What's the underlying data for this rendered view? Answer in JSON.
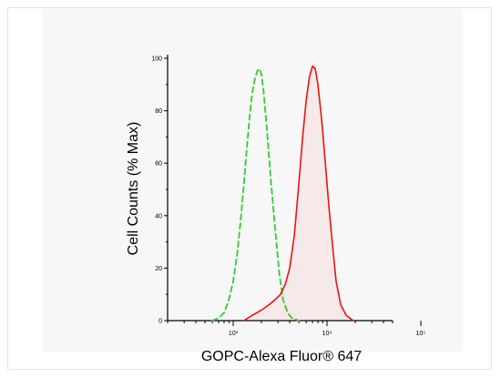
{
  "chart_data": {
    "type": "line",
    "xlabel": "GOPC-Alexa Fluor® 647",
    "ylabel": "Cell Counts (% Max)",
    "x_scale": "log",
    "xlim": [
      200,
      50000
    ],
    "ylim": [
      0,
      100
    ],
    "x_ticks": [
      {
        "value": 1000,
        "label": "10³"
      },
      {
        "value": 10000,
        "label": "10⁴"
      },
      {
        "value": 100000,
        "label": "10⁵"
      }
    ],
    "y_ticks": [
      {
        "value": 0,
        "label": "0"
      },
      {
        "value": 20,
        "label": "20"
      },
      {
        "value": 40,
        "label": "40"
      },
      {
        "value": 60,
        "label": "60"
      },
      {
        "value": 80,
        "label": "80"
      },
      {
        "value": 100,
        "label": "100"
      }
    ],
    "grid": false,
    "legend": "none",
    "series": [
      {
        "color": "#33cc33",
        "style": "dashed",
        "points": [
          [
            600,
            0
          ],
          [
            700,
            1
          ],
          [
            800,
            3
          ],
          [
            900,
            8
          ],
          [
            1000,
            15
          ],
          [
            1100,
            25
          ],
          [
            1200,
            38
          ],
          [
            1300,
            52
          ],
          [
            1400,
            66
          ],
          [
            1500,
            78
          ],
          [
            1600,
            87
          ],
          [
            1700,
            92
          ],
          [
            1800,
            95
          ],
          [
            1900,
            96
          ],
          [
            2000,
            94
          ],
          [
            2100,
            88
          ],
          [
            2300,
            72
          ],
          [
            2500,
            55
          ],
          [
            2800,
            35
          ],
          [
            3100,
            18
          ],
          [
            3400,
            8
          ],
          [
            3800,
            3
          ],
          [
            4200,
            1
          ],
          [
            5000,
            0
          ]
        ]
      },
      {
        "color": "#ee1111",
        "style": "solid",
        "points": [
          [
            1300,
            0
          ],
          [
            1600,
            2
          ],
          [
            2000,
            4
          ],
          [
            2400,
            6
          ],
          [
            2800,
            8
          ],
          [
            3200,
            10
          ],
          [
            3600,
            14
          ],
          [
            4000,
            20
          ],
          [
            4500,
            33
          ],
          [
            5000,
            52
          ],
          [
            5500,
            70
          ],
          [
            6000,
            84
          ],
          [
            6500,
            93
          ],
          [
            7000,
            97
          ],
          [
            7500,
            96
          ],
          [
            8000,
            90
          ],
          [
            8800,
            76
          ],
          [
            9600,
            60
          ],
          [
            10500,
            43
          ],
          [
            11500,
            28
          ],
          [
            12500,
            15
          ],
          [
            14000,
            6
          ],
          [
            16000,
            2
          ],
          [
            19000,
            0
          ]
        ]
      }
    ]
  }
}
